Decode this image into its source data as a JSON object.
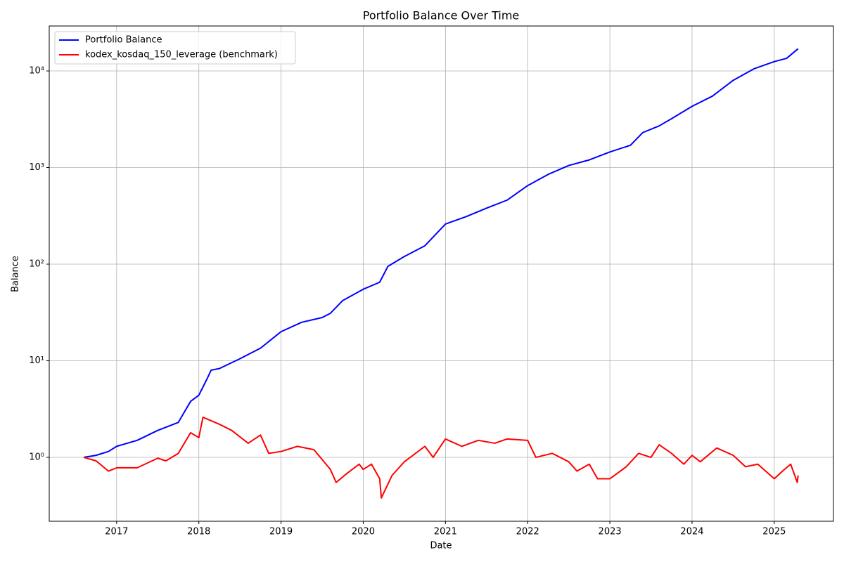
{
  "chart_data": {
    "type": "line",
    "title": "Portfolio Balance Over Time",
    "x_label": "Date",
    "y_label": "Balance",
    "xlim": [
      2016.18,
      2025.72
    ],
    "xticks": [
      2017,
      2018,
      2019,
      2020,
      2021,
      2022,
      2023,
      2024,
      2025
    ],
    "ylim": [
      0.218,
      29200
    ],
    "log_y": true,
    "yticks": [
      {
        "value": 1,
        "label": "10⁰"
      },
      {
        "value": 10,
        "label": "10¹"
      },
      {
        "value": 100,
        "label": "10²"
      },
      {
        "value": 1000,
        "label": "10³"
      },
      {
        "value": 10000,
        "label": "10⁴"
      }
    ],
    "grid": true,
    "legend": "upper-left",
    "series": [
      {
        "name": "Portfolio Balance",
        "color": "#0000ff",
        "x": [
          2016.6,
          2016.75,
          2016.9,
          2017.0,
          2017.25,
          2017.5,
          2017.75,
          2017.9,
          2018.0,
          2018.1,
          2018.15,
          2018.25,
          2018.5,
          2018.75,
          2019.0,
          2019.25,
          2019.5,
          2019.6,
          2019.75,
          2020.0,
          2020.2,
          2020.3,
          2020.5,
          2020.75,
          2021.0,
          2021.25,
          2021.5,
          2021.75,
          2022.0,
          2022.25,
          2022.5,
          2022.75,
          2023.0,
          2023.25,
          2023.4,
          2023.6,
          2023.75,
          2024.0,
          2024.25,
          2024.5,
          2024.75,
          2025.0,
          2025.15,
          2025.29
        ],
        "values": [
          1.0,
          1.05,
          1.15,
          1.3,
          1.5,
          1.9,
          2.3,
          3.8,
          4.4,
          6.5,
          8,
          8.3,
          10.5,
          13.5,
          20,
          25,
          28,
          31,
          42,
          55,
          65,
          95,
          120,
          155,
          260,
          310,
          380,
          460,
          650,
          850,
          1050,
          1200,
          1450,
          1700,
          2300,
          2700,
          3200,
          4300,
          5500,
          8000,
          10500,
          12500,
          13500,
          17000
        ]
      },
      {
        "name": "kodex_kosdaq_150_leverage (benchmark)",
        "color": "#ff0000",
        "x": [
          2016.6,
          2016.75,
          2016.9,
          2017.0,
          2017.25,
          2017.5,
          2017.6,
          2017.75,
          2017.9,
          2018.0,
          2018.05,
          2018.25,
          2018.4,
          2018.6,
          2018.75,
          2018.85,
          2019.0,
          2019.2,
          2019.4,
          2019.5,
          2019.6,
          2019.67,
          2019.8,
          2019.95,
          2020.0,
          2020.1,
          2020.2,
          2020.22,
          2020.35,
          2020.5,
          2020.75,
          2020.85,
          2021.0,
          2021.2,
          2021.4,
          2021.6,
          2021.75,
          2022.0,
          2022.1,
          2022.3,
          2022.5,
          2022.6,
          2022.75,
          2022.85,
          2023.0,
          2023.2,
          2023.35,
          2023.5,
          2023.6,
          2023.75,
          2023.9,
          2024.0,
          2024.1,
          2024.3,
          2024.5,
          2024.65,
          2024.8,
          2025.0,
          2025.1,
          2025.2,
          2025.28,
          2025.29
        ],
        "values": [
          1.0,
          0.92,
          0.72,
          0.78,
          0.78,
          0.98,
          0.92,
          1.1,
          1.8,
          1.6,
          2.6,
          2.2,
          1.9,
          1.4,
          1.7,
          1.1,
          1.15,
          1.3,
          1.2,
          0.95,
          0.75,
          0.55,
          0.68,
          0.85,
          0.75,
          0.85,
          0.6,
          0.38,
          0.65,
          0.9,
          1.3,
          1.0,
          1.55,
          1.3,
          1.5,
          1.4,
          1.55,
          1.5,
          1.0,
          1.1,
          0.9,
          0.72,
          0.85,
          0.6,
          0.6,
          0.8,
          1.1,
          1.0,
          1.35,
          1.1,
          0.85,
          1.05,
          0.9,
          1.25,
          1.05,
          0.8,
          0.85,
          0.6,
          0.72,
          0.85,
          0.55,
          0.65
        ]
      }
    ]
  }
}
